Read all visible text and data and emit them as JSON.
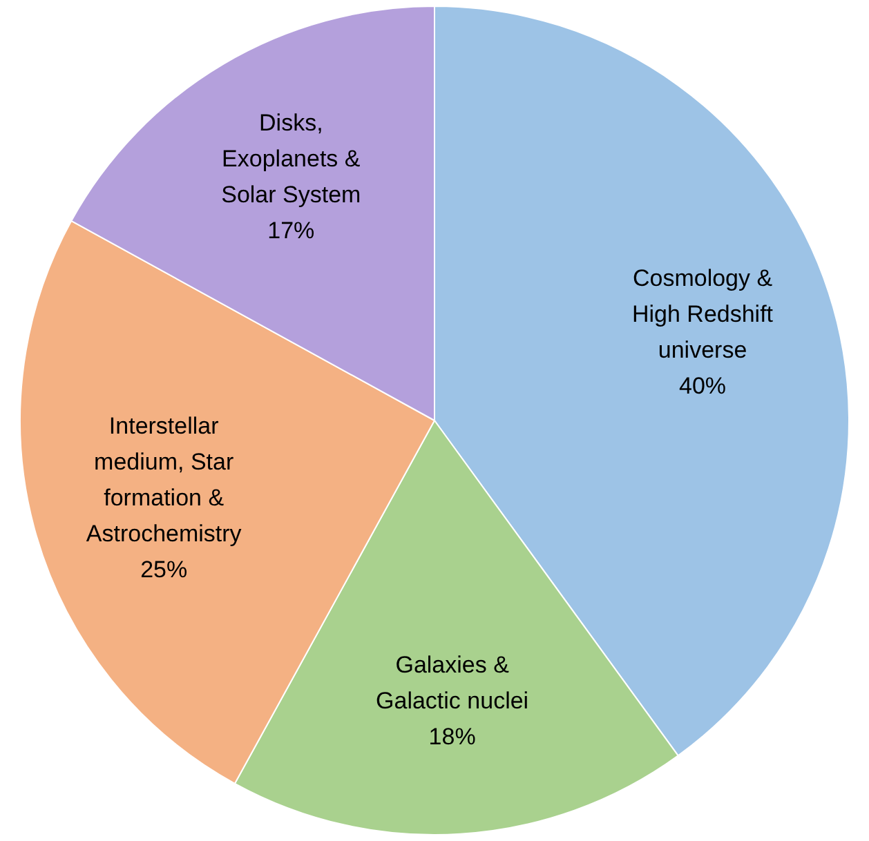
{
  "chart_data": {
    "type": "pie",
    "categories": [
      "Cosmology & High Redshift universe",
      "Galaxies & Galactic nuclei",
      "Interstellar medium, Star formation & Astrochemistry",
      "Disks, Exoplanets & Solar System"
    ],
    "values": [
      40,
      18,
      25,
      17
    ],
    "value_labels": [
      "40%",
      "18%",
      "25%",
      "17%"
    ],
    "colors": [
      "#9dc3e6",
      "#a9d18e",
      "#f4b183",
      "#b4a0dc"
    ],
    "legend": false
  }
}
